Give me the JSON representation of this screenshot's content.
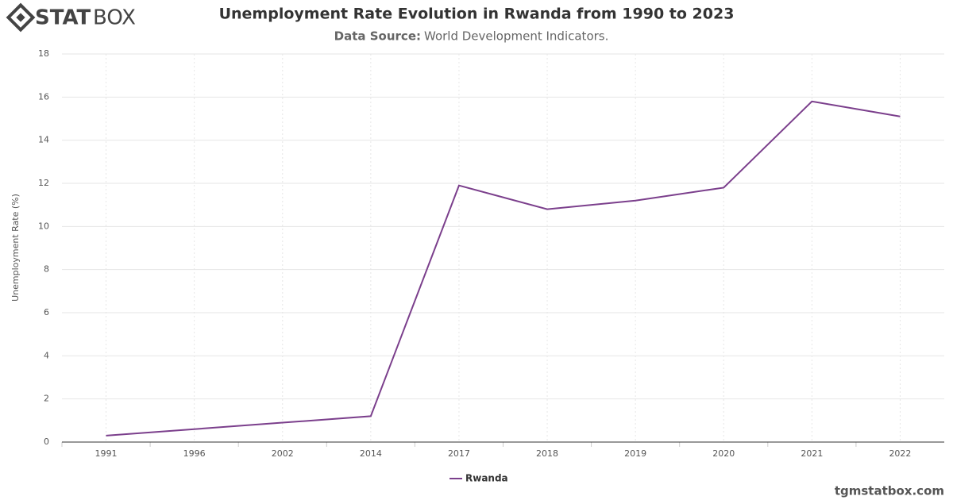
{
  "logo": {
    "bold": "STAT",
    "light": "BOX"
  },
  "footer": "tgmstatbox.com",
  "chart_data": {
    "type": "line",
    "title": "Unemployment Rate Evolution in Rwanda from 1990 to 2023",
    "subtitle_label": "Data Source:",
    "subtitle": "World Development Indicators.",
    "y_label": "Unemployment Rate (%)",
    "categories": [
      "1991",
      "1996",
      "2002",
      "2014",
      "2017",
      "2018",
      "2019",
      "2020",
      "2021",
      "2022"
    ],
    "series": [
      {
        "name": "Rwanda",
        "color": "#7b3f8c",
        "values": [
          0.3,
          0.6,
          0.9,
          1.2,
          11.9,
          10.8,
          11.2,
          11.8,
          15.8,
          15.1
        ]
      }
    ],
    "ylim": [
      0,
      18
    ],
    "yticks": [
      0,
      2,
      4,
      6,
      8,
      10,
      12,
      14,
      16,
      18
    ],
    "grid": true
  }
}
